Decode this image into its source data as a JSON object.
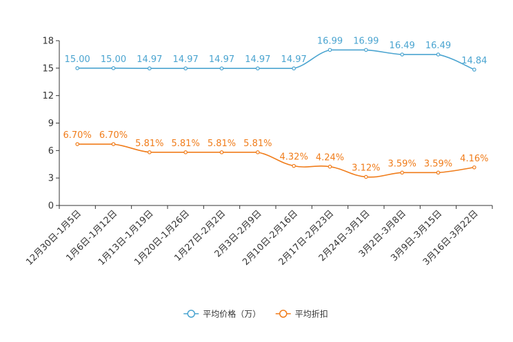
{
  "chart_data": {
    "type": "line",
    "title": "",
    "xlabel": "",
    "ylabel": "",
    "ylim": [
      0,
      18
    ],
    "yticks": [
      0,
      3,
      6,
      9,
      12,
      15,
      18
    ],
    "grid": false,
    "legend_position": "bottom",
    "categories": [
      "12月30日-1月5日",
      "1月6日-1月12日",
      "1月13日-1月19日",
      "1月20日-1月26日",
      "1月27日-2月2日",
      "2月3日-2月9日",
      "2月10日-2月16日",
      "2月17日-2月23日",
      "2月24日-3月1日",
      "3月2日-3月8日",
      "3月9日-3月15日",
      "3月16日-3月22日"
    ],
    "series": [
      {
        "name": "平均价格（万）",
        "color": "#4aa4d0",
        "values": [
          15.0,
          15.0,
          14.97,
          14.97,
          14.97,
          14.97,
          14.97,
          16.99,
          16.99,
          16.49,
          16.49,
          14.84
        ],
        "labels": [
          "15.00",
          "15.00",
          "14.97",
          "14.97",
          "14.97",
          "14.97",
          "14.97",
          "16.99",
          "16.99",
          "16.49",
          "16.49",
          "14.84"
        ]
      },
      {
        "name": "平均折扣",
        "color": "#f07c1a",
        "values": [
          6.7,
          6.7,
          5.81,
          5.81,
          5.81,
          5.81,
          4.32,
          4.24,
          3.12,
          3.59,
          3.59,
          4.16
        ],
        "labels": [
          "6.70%",
          "6.70%",
          "5.81%",
          "5.81%",
          "5.81%",
          "5.81%",
          "4.32%",
          "4.24%",
          "3.12%",
          "3.59%",
          "3.59%",
          "4.16%"
        ]
      }
    ]
  }
}
